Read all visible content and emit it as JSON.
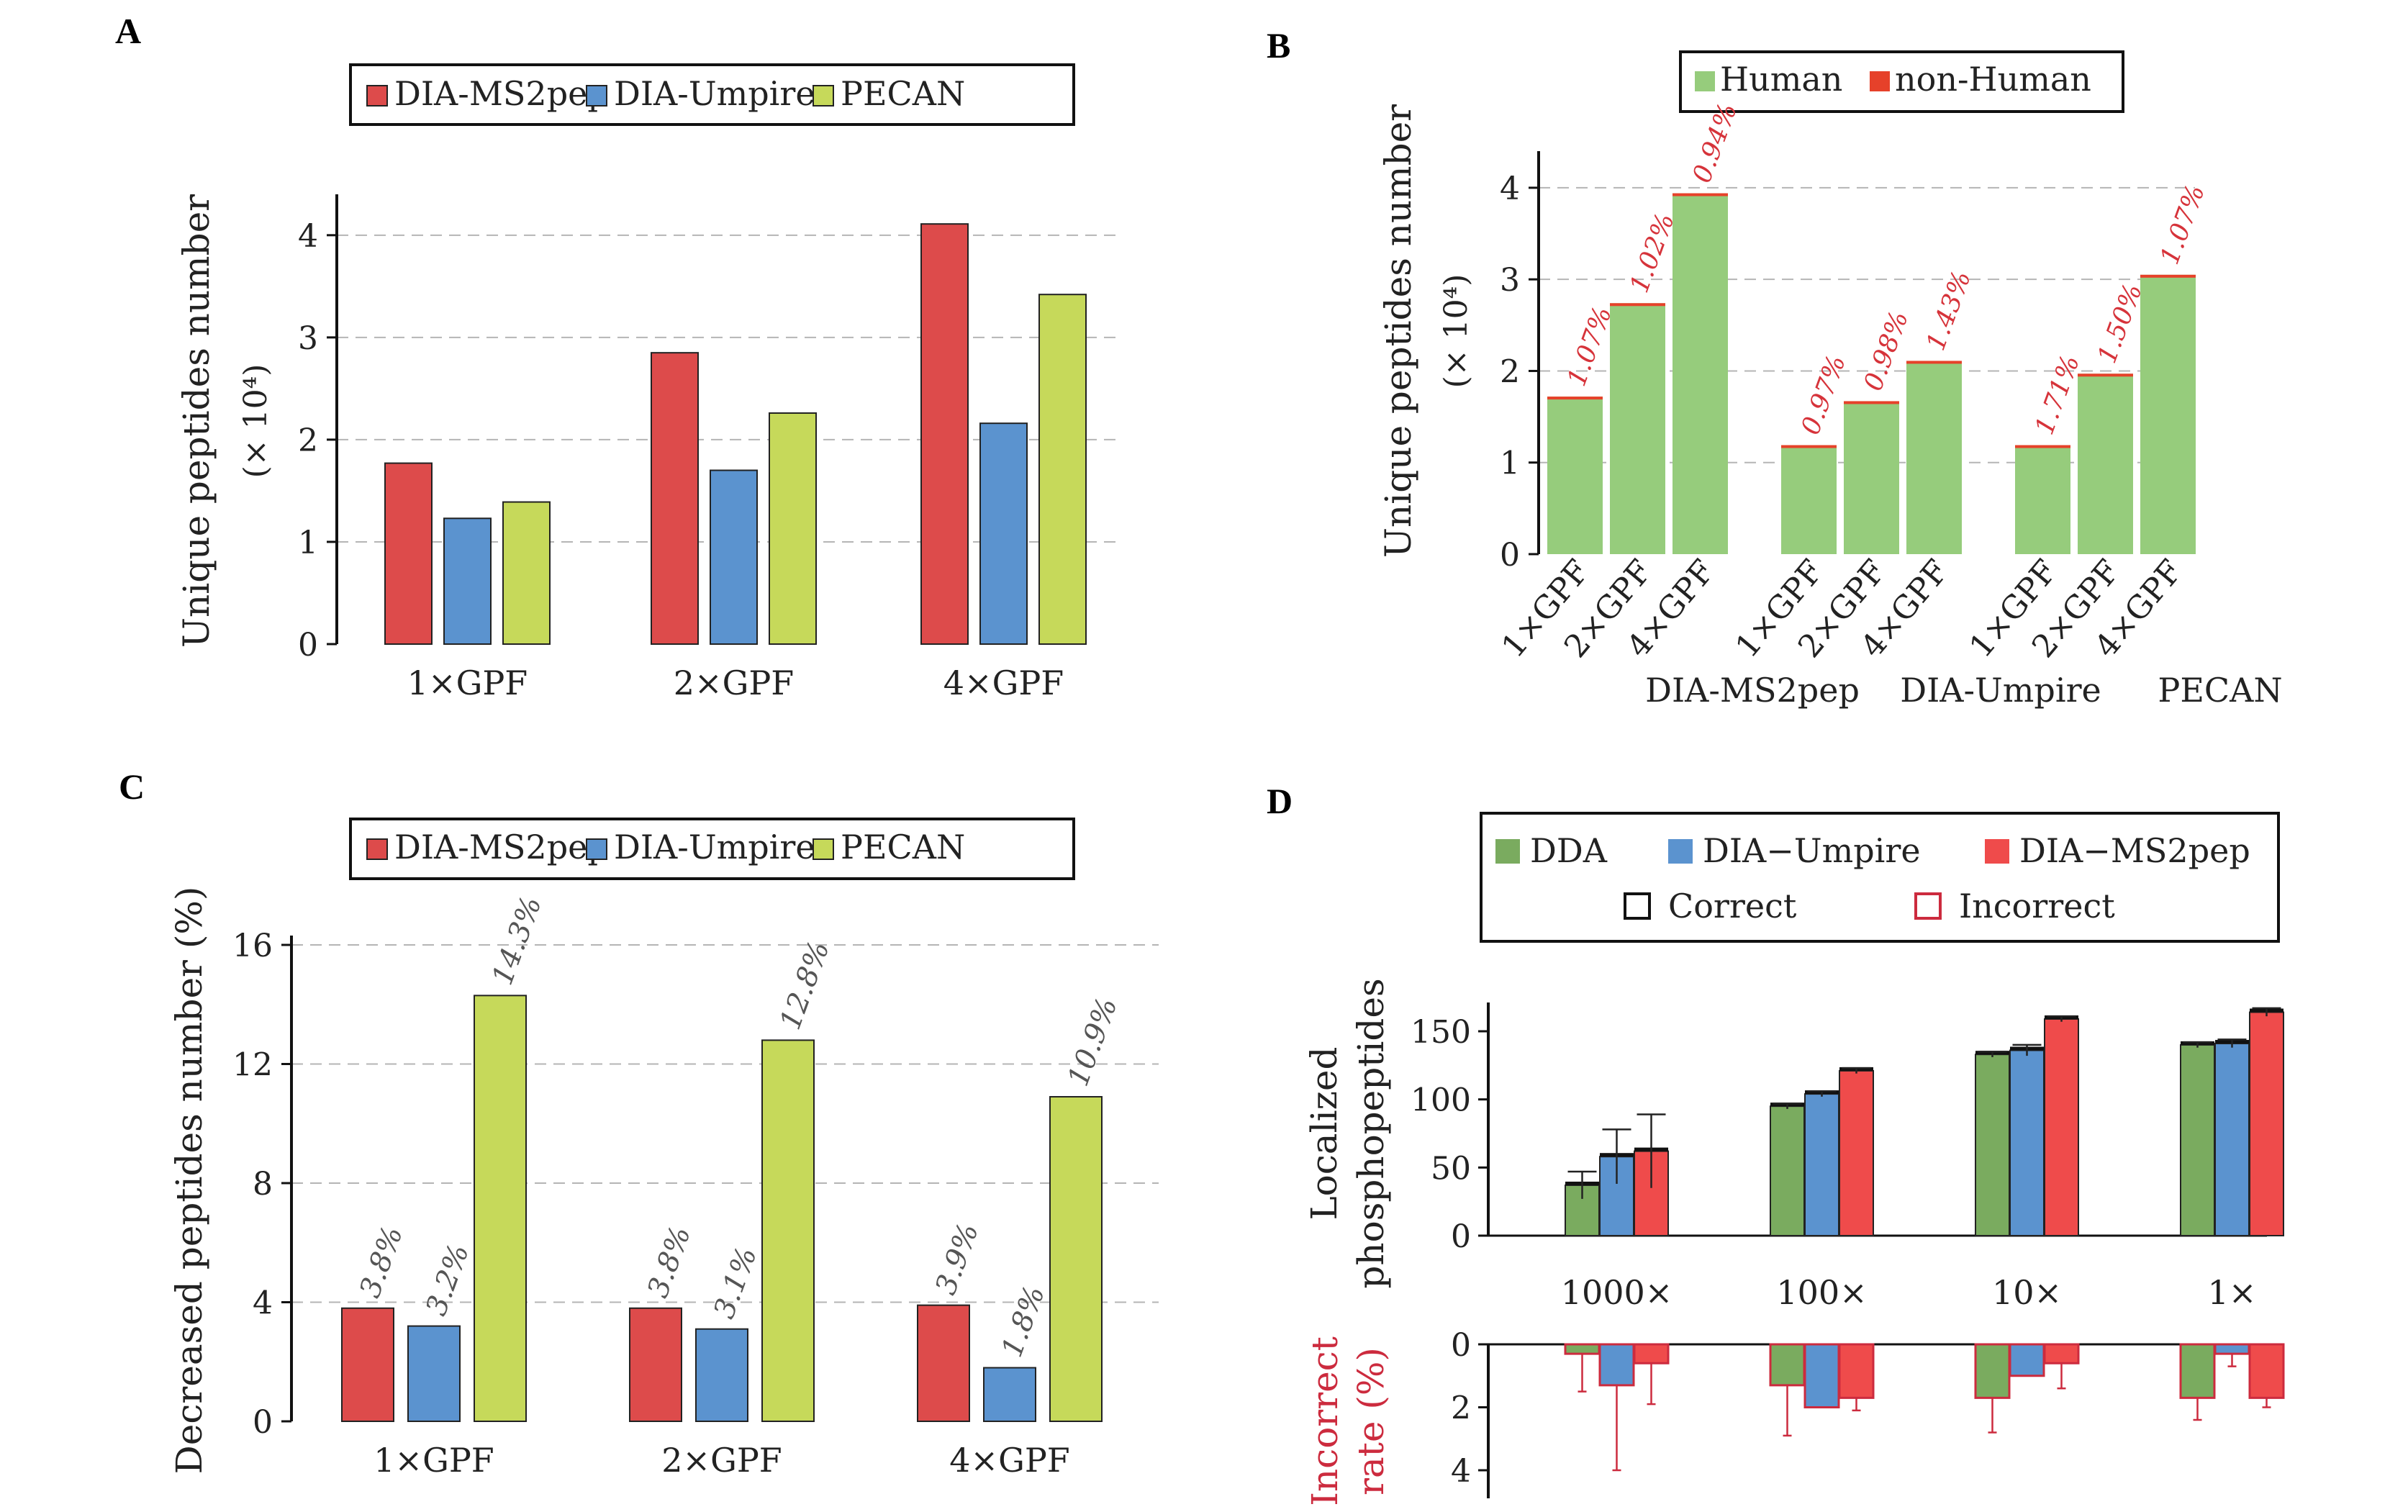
{
  "panels": {
    "a": "A",
    "b": "B",
    "c": "C",
    "d": "D"
  },
  "colors": {
    "red": "#dd4b4b",
    "blue": "#5b93cf",
    "yellowgreen": "#c6d95a",
    "green": "#96cc7c",
    "nonhuman": "#e6412a",
    "pct_red": "#d6333a",
    "dgreen": "#7aab5f",
    "dblue": "#5b93cf",
    "dred": "#ef4b4b",
    "crimson": "#cc2b3e",
    "grid": "#b5b5b5",
    "text": "#222222",
    "gray_text": "#555555"
  },
  "chart_data": [
    {
      "panel": "A",
      "type": "bar",
      "ylabel": "Unique peptides number",
      "ylabel2": "(× 10⁴)",
      "categories": [
        "1×GPF",
        "2×GPF",
        "4×GPF"
      ],
      "series": [
        {
          "name": "DIA-MS2pep",
          "color": "red",
          "values": [
            1.77,
            2.85,
            4.11
          ]
        },
        {
          "name": "DIA-Umpire",
          "color": "blue",
          "values": [
            1.23,
            1.7,
            2.16
          ]
        },
        {
          "name": "PECAN",
          "color": "yellowgreen",
          "values": [
            1.39,
            2.26,
            3.42
          ]
        }
      ],
      "ylim": [
        0,
        4.4
      ],
      "yticks": [
        0,
        1,
        2,
        3,
        4
      ],
      "grid": true,
      "legend": "top"
    },
    {
      "panel": "B",
      "type": "bar",
      "stacked": true,
      "ylabel": "Unique peptides number",
      "ylabel2": "(× 10⁴)",
      "groups": [
        "DIA-MS2pep",
        "DIA-Umpire",
        "PECAN"
      ],
      "categories": [
        "1×GPF",
        "2×GPF",
        "4×GPF"
      ],
      "legend_items": [
        {
          "name": "Human",
          "color": "green"
        },
        {
          "name": "non-Human",
          "color": "nonhuman"
        }
      ],
      "totals": [
        [
          1.72,
          2.74,
          3.94
        ],
        [
          1.19,
          1.67,
          2.11
        ],
        [
          1.19,
          1.97,
          3.05
        ]
      ],
      "nonhuman_pct": [
        [
          "1.07%",
          "1.02%",
          "0.94%"
        ],
        [
          "0.97%",
          "0.98%",
          "1.43%"
        ],
        [
          "1.71%",
          "1.50%",
          "1.07%"
        ]
      ],
      "ylim": [
        0,
        4.4
      ],
      "yticks": [
        0,
        1,
        2,
        3,
        4
      ],
      "grid": true,
      "legend": "top"
    },
    {
      "panel": "C",
      "type": "bar",
      "ylabel": "Decreased peptides number (%)",
      "categories": [
        "1×GPF",
        "2×GPF",
        "4×GPF"
      ],
      "series": [
        {
          "name": "DIA-MS2pep",
          "color": "red",
          "values": [
            3.8,
            3.8,
            3.9
          ],
          "labels": [
            "3.8%",
            "3.8%",
            "3.9%"
          ]
        },
        {
          "name": "DIA-Umpire",
          "color": "blue",
          "values": [
            3.2,
            3.1,
            1.8
          ],
          "labels": [
            "3.2%",
            "3.1%",
            "1.8%"
          ]
        },
        {
          "name": "PECAN",
          "color": "yellowgreen",
          "values": [
            14.3,
            12.8,
            10.9
          ],
          "labels": [
            "14.3%",
            "12.8%",
            "10.9%"
          ]
        }
      ],
      "ylim": [
        0,
        16
      ],
      "yticks": [
        0,
        4,
        8,
        12,
        16
      ],
      "grid": true,
      "legend": "top"
    },
    {
      "panel": "D",
      "type": "bar",
      "ylabel": [
        "Localized",
        "phosphopeptides"
      ],
      "categories": [
        "1000×",
        "100×",
        "10×",
        "1×"
      ],
      "legend_items": [
        {
          "name": "DDA",
          "color": "dgreen"
        },
        {
          "name": "DIA−Umpire",
          "color": "dblue"
        },
        {
          "name": "DIA−MS2pep",
          "color": "dred"
        }
      ],
      "legend_outline": [
        {
          "name": "Correct",
          "color": "#111111"
        },
        {
          "name": "Incorrect",
          "color": "crimson"
        }
      ],
      "top": {
        "series": [
          {
            "name": "DDA",
            "color": "dgreen",
            "values": [
              37,
              95,
              133,
              140
            ],
            "err": [
              10,
              2,
              2,
              2
            ]
          },
          {
            "name": "DIA−Umpire",
            "color": "dblue",
            "values": [
              58,
              104,
              136,
              141
            ],
            "err": [
              20,
              2,
              4,
              3
            ]
          },
          {
            "name": "DIA−MS2pep",
            "color": "dred",
            "values": [
              62,
              121,
              159,
              164
            ],
            "err": [
              27,
              2,
              2,
              3
            ]
          }
        ],
        "ylim": [
          0,
          170
        ],
        "yticks": [
          0,
          50,
          100,
          150
        ]
      },
      "bottom": {
        "ylabel": [
          "Incorrect",
          "rate (%)"
        ],
        "series": [
          {
            "name": "DDA",
            "color": "dgreen",
            "values": [
              0.3,
              1.3,
              1.7,
              1.7
            ],
            "err": [
              1.2,
              1.6,
              1.1,
              0.7
            ]
          },
          {
            "name": "DIA−Umpire",
            "color": "dblue",
            "values": [
              1.3,
              2.0,
              1.0,
              0.3
            ],
            "err": [
              2.7,
              0.0,
              0.0,
              0.4
            ]
          },
          {
            "name": "DIA−MS2pep",
            "color": "dred",
            "values": [
              0.6,
              1.7,
              0.6,
              1.7
            ],
            "err": [
              1.3,
              0.4,
              0.8,
              0.3
            ]
          }
        ],
        "ylim": [
          0,
          5
        ],
        "yticks": [
          0,
          2,
          4
        ]
      }
    }
  ]
}
